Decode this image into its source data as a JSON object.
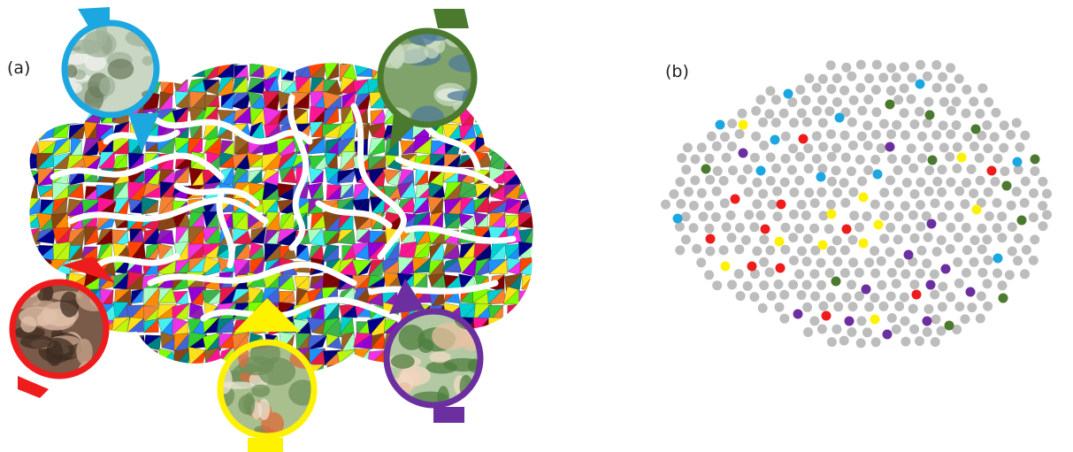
{
  "panels": {
    "a": {
      "label": "(a)"
    },
    "b": {
      "label": "(b)"
    }
  },
  "colors": {
    "blue": "#1ca7e0",
    "green": "#4b7a2e",
    "red": "#ee1c1c",
    "yellow": "#fff200",
    "purple": "#6b2fa0",
    "gray": "#bdbdbd"
  },
  "icons": [
    {
      "name": "wedding-car-photo-icon",
      "color": "blue"
    },
    {
      "name": "garden-ceremony-photo-icon",
      "color": "green"
    },
    {
      "name": "holding-hands-photo-icon",
      "color": "red"
    },
    {
      "name": "buffet-food-photo-icon",
      "color": "yellow"
    },
    {
      "name": "group-guests-photo-icon",
      "color": "purple"
    }
  ]
}
